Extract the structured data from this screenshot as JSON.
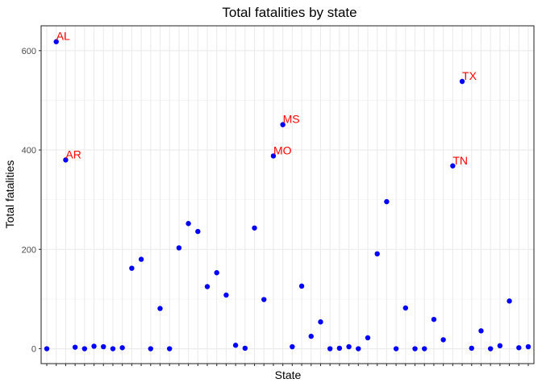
{
  "chart_data": {
    "type": "scatter",
    "title": "Total fatalities by state",
    "xlabel": "State",
    "ylabel": "Total fatalities",
    "y_ticks": [
      0,
      200,
      400,
      600
    ],
    "ylim": [
      -30,
      650
    ],
    "x_tick_labels_shown": false,
    "grid": true,
    "point_color": "#0000ff",
    "label_color": "#ff0000",
    "points": [
      {
        "x": 1,
        "y": 0
      },
      {
        "x": 2,
        "y": 618,
        "label": "AL"
      },
      {
        "x": 3,
        "y": 380,
        "label": "AR"
      },
      {
        "x": 4,
        "y": 3
      },
      {
        "x": 5,
        "y": 0
      },
      {
        "x": 6,
        "y": 5
      },
      {
        "x": 7,
        "y": 4
      },
      {
        "x": 8,
        "y": 0
      },
      {
        "x": 9,
        "y": 2
      },
      {
        "x": 10,
        "y": 162
      },
      {
        "x": 11,
        "y": 180
      },
      {
        "x": 12,
        "y": 0
      },
      {
        "x": 13,
        "y": 81
      },
      {
        "x": 14,
        "y": 0
      },
      {
        "x": 15,
        "y": 203
      },
      {
        "x": 16,
        "y": 252
      },
      {
        "x": 17,
        "y": 236
      },
      {
        "x": 18,
        "y": 125
      },
      {
        "x": 19,
        "y": 153
      },
      {
        "x": 20,
        "y": 108
      },
      {
        "x": 21,
        "y": 7
      },
      {
        "x": 22,
        "y": 1
      },
      {
        "x": 23,
        "y": 243
      },
      {
        "x": 24,
        "y": 99
      },
      {
        "x": 25,
        "y": 388,
        "label": "MO"
      },
      {
        "x": 26,
        "y": 451,
        "label": "MS"
      },
      {
        "x": 27,
        "y": 4
      },
      {
        "x": 28,
        "y": 126
      },
      {
        "x": 29,
        "y": 25
      },
      {
        "x": 30,
        "y": 54
      },
      {
        "x": 31,
        "y": 0
      },
      {
        "x": 32,
        "y": 1
      },
      {
        "x": 33,
        "y": 4
      },
      {
        "x": 34,
        "y": 0
      },
      {
        "x": 35,
        "y": 22
      },
      {
        "x": 36,
        "y": 191
      },
      {
        "x": 37,
        "y": 296
      },
      {
        "x": 38,
        "y": 0
      },
      {
        "x": 39,
        "y": 82
      },
      {
        "x": 40,
        "y": 0
      },
      {
        "x": 41,
        "y": 0
      },
      {
        "x": 42,
        "y": 59
      },
      {
        "x": 43,
        "y": 18
      },
      {
        "x": 44,
        "y": 368,
        "label": "TN"
      },
      {
        "x": 45,
        "y": 538,
        "label": "TX"
      },
      {
        "x": 46,
        "y": 1
      },
      {
        "x": 47,
        "y": 36
      },
      {
        "x": 48,
        "y": 0
      },
      {
        "x": 49,
        "y": 6
      },
      {
        "x": 50,
        "y": 96
      },
      {
        "x": 51,
        "y": 2
      },
      {
        "x": 52,
        "y": 4
      }
    ]
  }
}
